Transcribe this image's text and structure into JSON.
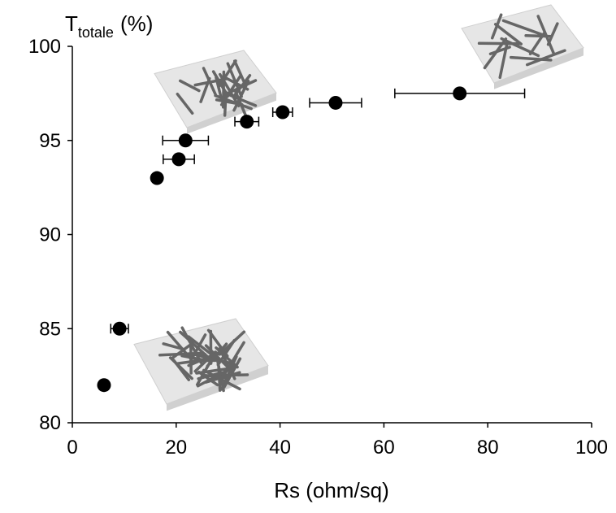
{
  "chart_data": {
    "type": "scatter",
    "x_label": "Rs (ohm/sq)",
    "y_label": {
      "symbol": "T",
      "subscript": "totale",
      "unit": "(%)"
    },
    "x": [
      6.1,
      9.1,
      16.3,
      20.5,
      21.8,
      33.6,
      40.5,
      50.7,
      74.6
    ],
    "values": [
      82,
      85,
      93,
      94,
      95,
      96,
      96.5,
      97,
      97.5
    ],
    "xerr": [
      null,
      1.7,
      null,
      3,
      4.4,
      2.3,
      1.9,
      5,
      12.5
    ],
    "color": "#000000",
    "xlim": [
      0,
      100
    ],
    "xticks": [
      0,
      20,
      40,
      60,
      80,
      100
    ],
    "ylim": [
      80,
      100
    ],
    "yticks": [
      80,
      85,
      90,
      95,
      100
    ],
    "grid": false
  }
}
